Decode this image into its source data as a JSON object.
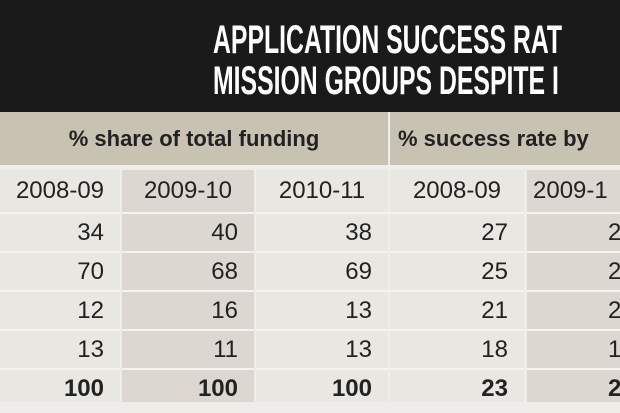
{
  "title": {
    "line1": "APPLICATION SUCCESS RAT",
    "line2": "MISSION GROUPS DESPITE I"
  },
  "groups": {
    "funding": "% share of total funding",
    "success": "% success rate by"
  },
  "columns": [
    {
      "year": "2008-09",
      "values": [
        "34",
        "70",
        "12",
        "13",
        "100"
      ]
    },
    {
      "year": "2009-10",
      "values": [
        "40",
        "68",
        "16",
        "11",
        "100"
      ]
    },
    {
      "year": "2010-11",
      "values": [
        "38",
        "69",
        "13",
        "13",
        "100"
      ]
    },
    {
      "year": "2008-09",
      "values": [
        "27",
        "25",
        "21",
        "18",
        "23"
      ]
    },
    {
      "year": "2009-1",
      "values": [
        "2",
        "2",
        "2",
        "1",
        "2"
      ]
    }
  ]
}
